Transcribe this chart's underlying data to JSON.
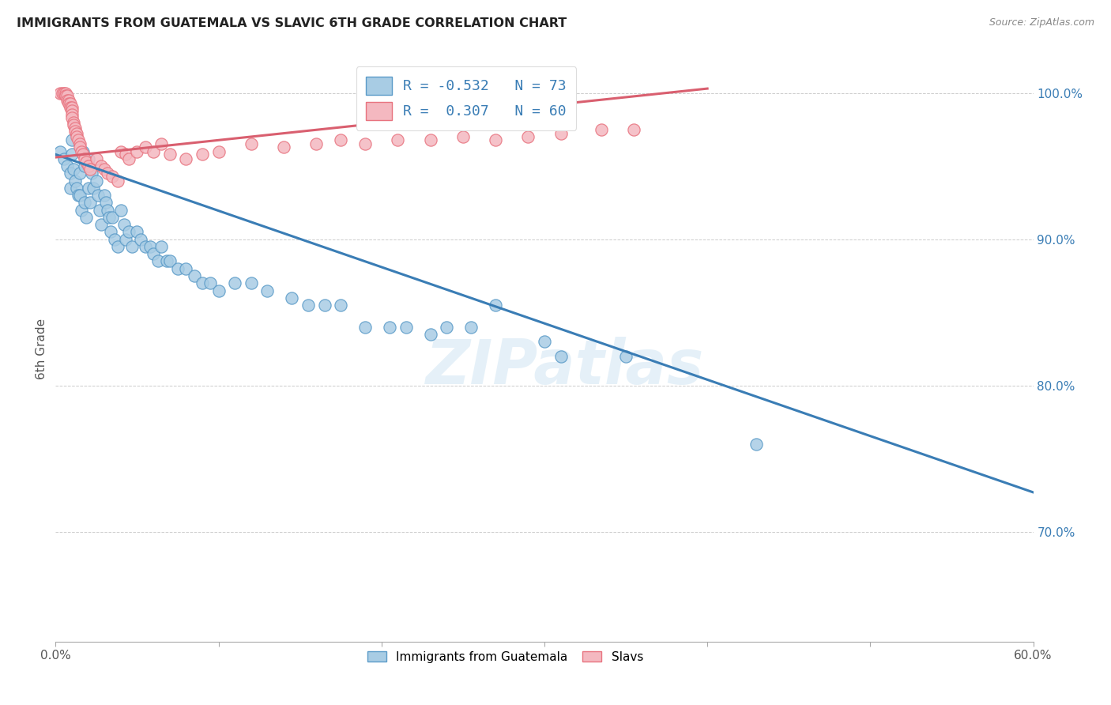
{
  "title": "IMMIGRANTS FROM GUATEMALA VS SLAVIC 6TH GRADE CORRELATION CHART",
  "source": "Source: ZipAtlas.com",
  "ylabel": "6th Grade",
  "xlim": [
    0.0,
    0.6
  ],
  "ylim": [
    0.625,
    1.025
  ],
  "xtick_positions": [
    0.0,
    0.1,
    0.2,
    0.3,
    0.4,
    0.5,
    0.6
  ],
  "xticklabels": [
    "0.0%",
    "",
    "",
    "",
    "",
    "",
    "60.0%"
  ],
  "ytick_right_positions": [
    0.7,
    0.8,
    0.9,
    1.0
  ],
  "ytick_right_labels": [
    "70.0%",
    "80.0%",
    "90.0%",
    "100.0%"
  ],
  "watermark": "ZIPatlas",
  "blue_color": "#a8cce4",
  "pink_color": "#f4b8c0",
  "blue_edge_color": "#5b9bc8",
  "pink_edge_color": "#e8737f",
  "blue_line_color": "#3a7db5",
  "pink_line_color": "#d95f6f",
  "legend_R_blue": "-0.532",
  "legend_N_blue": "73",
  "legend_R_pink": "0.307",
  "legend_N_pink": "60",
  "legend_label_blue": "Immigrants from Guatemala",
  "legend_label_pink": "Slavs",
  "blue_scatter_x": [
    0.003,
    0.005,
    0.007,
    0.009,
    0.009,
    0.01,
    0.01,
    0.011,
    0.012,
    0.013,
    0.014,
    0.015,
    0.015,
    0.016,
    0.017,
    0.018,
    0.018,
    0.019,
    0.02,
    0.02,
    0.021,
    0.022,
    0.023,
    0.025,
    0.026,
    0.027,
    0.028,
    0.03,
    0.031,
    0.032,
    0.033,
    0.034,
    0.035,
    0.036,
    0.038,
    0.04,
    0.042,
    0.043,
    0.045,
    0.047,
    0.05,
    0.052,
    0.055,
    0.058,
    0.06,
    0.063,
    0.065,
    0.068,
    0.07,
    0.075,
    0.08,
    0.085,
    0.09,
    0.095,
    0.1,
    0.11,
    0.12,
    0.13,
    0.145,
    0.155,
    0.165,
    0.175,
    0.19,
    0.205,
    0.215,
    0.23,
    0.24,
    0.255,
    0.27,
    0.3,
    0.31,
    0.35,
    0.43
  ],
  "blue_scatter_y": [
    0.96,
    0.955,
    0.95,
    0.945,
    0.935,
    0.968,
    0.958,
    0.948,
    0.94,
    0.935,
    0.93,
    0.945,
    0.93,
    0.92,
    0.96,
    0.95,
    0.925,
    0.915,
    0.955,
    0.935,
    0.925,
    0.945,
    0.935,
    0.94,
    0.93,
    0.92,
    0.91,
    0.93,
    0.925,
    0.92,
    0.915,
    0.905,
    0.915,
    0.9,
    0.895,
    0.92,
    0.91,
    0.9,
    0.905,
    0.895,
    0.905,
    0.9,
    0.895,
    0.895,
    0.89,
    0.885,
    0.895,
    0.885,
    0.885,
    0.88,
    0.88,
    0.875,
    0.87,
    0.87,
    0.865,
    0.87,
    0.87,
    0.865,
    0.86,
    0.855,
    0.855,
    0.855,
    0.84,
    0.84,
    0.84,
    0.835,
    0.84,
    0.84,
    0.855,
    0.83,
    0.82,
    0.82,
    0.76
  ],
  "pink_scatter_x": [
    0.003,
    0.004,
    0.005,
    0.006,
    0.006,
    0.007,
    0.007,
    0.008,
    0.008,
    0.009,
    0.009,
    0.01,
    0.01,
    0.01,
    0.01,
    0.011,
    0.011,
    0.012,
    0.012,
    0.013,
    0.013,
    0.014,
    0.015,
    0.015,
    0.016,
    0.017,
    0.018,
    0.019,
    0.02,
    0.021,
    0.025,
    0.028,
    0.03,
    0.032,
    0.035,
    0.038,
    0.04,
    0.043,
    0.045,
    0.05,
    0.055,
    0.06,
    0.065,
    0.07,
    0.08,
    0.09,
    0.1,
    0.12,
    0.14,
    0.16,
    0.175,
    0.19,
    0.21,
    0.23,
    0.25,
    0.27,
    0.29,
    0.31,
    0.335,
    0.355
  ],
  "pink_scatter_y": [
    1.0,
    1.0,
    1.0,
    1.0,
    0.998,
    0.998,
    0.995,
    0.995,
    0.993,
    0.993,
    0.99,
    0.99,
    0.988,
    0.985,
    0.983,
    0.98,
    0.978,
    0.976,
    0.974,
    0.972,
    0.97,
    0.968,
    0.965,
    0.963,
    0.96,
    0.958,
    0.955,
    0.953,
    0.95,
    0.948,
    0.955,
    0.95,
    0.948,
    0.945,
    0.943,
    0.94,
    0.96,
    0.958,
    0.955,
    0.96,
    0.963,
    0.96,
    0.965,
    0.958,
    0.955,
    0.958,
    0.96,
    0.965,
    0.963,
    0.965,
    0.968,
    0.965,
    0.968,
    0.968,
    0.97,
    0.968,
    0.97,
    0.972,
    0.975,
    0.975
  ],
  "blue_trend_x": [
    0.0,
    0.6
  ],
  "blue_trend_y": [
    0.958,
    0.727
  ],
  "pink_trend_x": [
    0.0,
    0.4
  ],
  "pink_trend_y": [
    0.956,
    1.003
  ]
}
